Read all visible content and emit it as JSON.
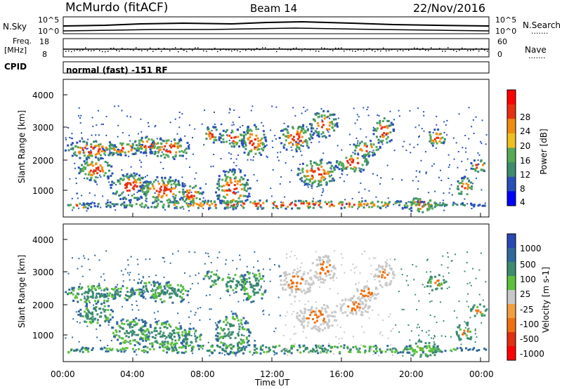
{
  "header": {
    "site": "McMurdo (fitACF)",
    "beam": "Beam 14",
    "date": "22/Nov/2016"
  },
  "top_panel": {
    "nsky_label": "N.Sky",
    "nsearch_label": "N.Search",
    "freq_label_1": "Freq.",
    "freq_label_2": "[MHz]",
    "nave_label": "Nave",
    "cpid_label": "CPID",
    "left_ticks_top": [
      "10^5",
      "10^0"
    ],
    "right_ticks_top": [
      "10^5",
      "10^0"
    ],
    "left_ticks_freq": [
      "18",
      "8"
    ],
    "right_ticks_nave": [
      "60",
      "0"
    ],
    "cpid_text": "normal (fast) -151 RF",
    "dot_marker": "......."
  },
  "chart_data": [
    {
      "type": "heatmap",
      "name": "power",
      "ylabel": "Slant Range [km]",
      "yticks": [
        "4000",
        "3000",
        "2000",
        "1000"
      ],
      "colorbar_label": "Power [dB]",
      "colorbar_ticks": [
        "28",
        "24",
        "20",
        "16",
        "12",
        "8",
        "4"
      ],
      "colors": [
        "#0000ff",
        "#2850b8",
        "#3c8c6e",
        "#55aa55",
        "#f0c020",
        "#f08c10",
        "#e83010",
        "#ff0000"
      ],
      "ylim": [
        180,
        4600
      ]
    },
    {
      "type": "heatmap",
      "name": "velocity",
      "ylabel": "Slant Range [km]",
      "yticks": [
        "4000",
        "3000",
        "2000",
        "1000"
      ],
      "colorbar_label": "Velocity [m s-1]",
      "colorbar_ticks": [
        "1000",
        "500",
        "100",
        "25",
        "-25",
        "-100",
        "-500",
        "-1000"
      ],
      "colors": [
        "#2848b4",
        "#2f6a9a",
        "#3c8c6e",
        "#5cc040",
        "#c8c8c8",
        "#f0a040",
        "#f07010",
        "#e03010",
        "#ff0000"
      ],
      "ylim": [
        180,
        4600
      ]
    }
  ],
  "x_axis": {
    "xlabel": "Time UT",
    "ticks": [
      "00:00",
      "04:00",
      "08:00",
      "12:00",
      "16:00",
      "20:00",
      "00:00"
    ]
  }
}
